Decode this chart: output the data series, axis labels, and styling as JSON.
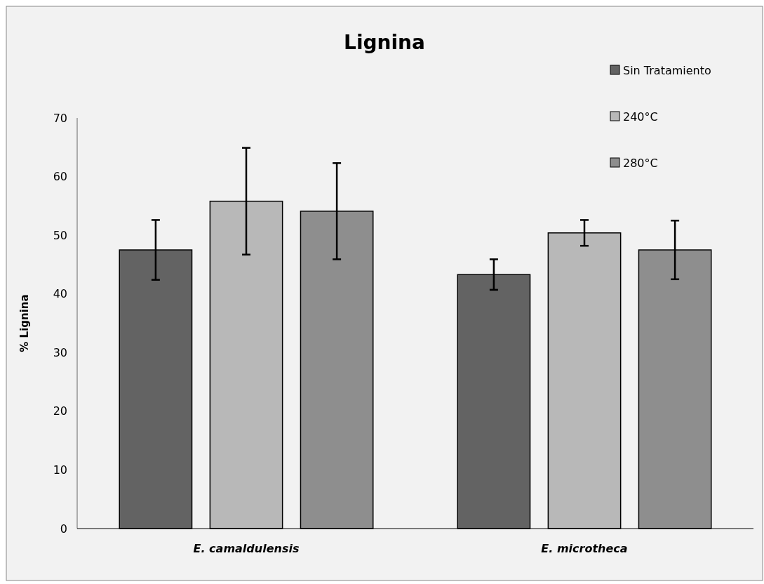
{
  "chart_data": {
    "type": "bar",
    "title": "Lignina",
    "ylabel": "% Lignina",
    "categories": [
      "E. camaldulensis",
      "E. microtheca"
    ],
    "series": [
      {
        "name": "Sin Tratamiento",
        "color": "#636363",
        "values": [
          47.5,
          43.3
        ],
        "errors": [
          5.1,
          2.6
        ]
      },
      {
        "name": "240°C",
        "color": "#b8b8b8",
        "values": [
          55.8,
          50.4
        ],
        "errors": [
          9.1,
          2.2
        ]
      },
      {
        "name": "280°C",
        "color": "#8e8e8e",
        "values": [
          54.1,
          47.5
        ],
        "errors": [
          8.2,
          5
        ]
      }
    ],
    "ylim": [
      0,
      70
    ],
    "yticks": [
      0,
      10,
      20,
      30,
      40,
      50,
      60,
      70
    ],
    "legend": "top right",
    "grid": false
  }
}
